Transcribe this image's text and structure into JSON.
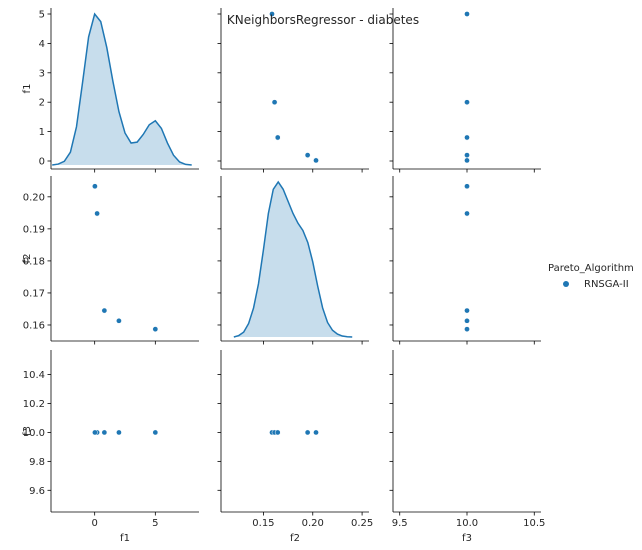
{
  "chart_data": {
    "type": "scatter",
    "title": "KNeighborsRegressor - diabetes",
    "legend": {
      "title": "Pareto_Algorithm",
      "entries": [
        "RNSGA-II"
      ],
      "placement": "right",
      "color": "#1f77b4"
    },
    "variables": [
      "f1",
      "f2",
      "f3"
    ],
    "series": [
      {
        "name": "RNSGA-II",
        "points": [
          {
            "f1": 5.0,
            "f2": 0.1587,
            "f3": 10.0
          },
          {
            "f1": 2.0,
            "f2": 0.1613,
            "f3": 10.0
          },
          {
            "f1": 0.8,
            "f2": 0.1645,
            "f3": 10.0
          },
          {
            "f1": 0.2,
            "f2": 0.1948,
            "f3": 10.0
          },
          {
            "f1": 0.02,
            "f2": 0.2033,
            "f3": 10.0
          }
        ]
      }
    ],
    "axes": {
      "f1": {
        "lim": [
          -3.6,
          8.6
        ],
        "ticks": [
          0,
          5
        ],
        "tick_labels": [
          "0",
          "5"
        ]
      },
      "f2": {
        "lim": [
          0.155,
          0.2065
        ],
        "ticks": [
          0.16,
          0.17,
          0.18,
          0.19,
          0.2
        ],
        "tick_labels": [
          "0.16",
          "0.17",
          "0.18",
          "0.19",
          "0.20"
        ]
      },
      "f2_x": {
        "lim": [
          0.107,
          0.257
        ],
        "ticks": [
          0.15,
          0.2,
          0.25
        ],
        "tick_labels": [
          "0.15",
          "0.20",
          "0.25"
        ]
      },
      "f3": {
        "lim": [
          9.45,
          10.57
        ],
        "ticks": [
          9.6,
          9.8,
          10.0,
          10.2,
          10.4
        ],
        "tick_labels": [
          "9.6",
          "9.8",
          "10.0",
          "10.2",
          "10.4"
        ]
      },
      "f3_x": {
        "lim": [
          9.45,
          10.55
        ],
        "ticks": [
          9.5,
          10.0,
          10.5
        ],
        "tick_labels": [
          "9.5",
          "10.0",
          "10.5"
        ]
      },
      "diag_f1_left": {
        "ticks": [
          0,
          1,
          2,
          3,
          4,
          5
        ],
        "tick_labels": [
          "0",
          "1",
          "2",
          "3",
          "4",
          "5"
        ]
      }
    },
    "kde_f1": {
      "x": [
        -3.5,
        -3.0,
        -2.5,
        -2.0,
        -1.5,
        -1.0,
        -0.5,
        0.0,
        0.5,
        1.0,
        1.5,
        2.0,
        2.5,
        3.0,
        3.5,
        4.0,
        4.5,
        5.0,
        5.5,
        6.0,
        6.5,
        7.0,
        7.5,
        8.0
      ],
      "density": [
        0.0,
        0.03,
        0.12,
        0.42,
        1.25,
        2.7,
        4.2,
        4.95,
        4.7,
        3.85,
        2.75,
        1.75,
        1.05,
        0.72,
        0.75,
        1.0,
        1.32,
        1.45,
        1.2,
        0.72,
        0.32,
        0.1,
        0.02,
        0.0
      ]
    },
    "kde_f2": {
      "x": [
        0.12,
        0.125,
        0.13,
        0.135,
        0.14,
        0.145,
        0.15,
        0.155,
        0.16,
        0.165,
        0.17,
        0.175,
        0.18,
        0.185,
        0.19,
        0.195,
        0.2,
        0.205,
        0.21,
        0.215,
        0.22,
        0.225,
        0.23,
        0.235,
        0.24
      ],
      "density": [
        0.0,
        0.03,
        0.1,
        0.28,
        0.6,
        1.1,
        1.8,
        2.55,
        3.05,
        3.2,
        3.05,
        2.8,
        2.55,
        2.35,
        2.2,
        1.95,
        1.55,
        1.05,
        0.6,
        0.3,
        0.14,
        0.06,
        0.02,
        0.005,
        0.0
      ]
    }
  }
}
